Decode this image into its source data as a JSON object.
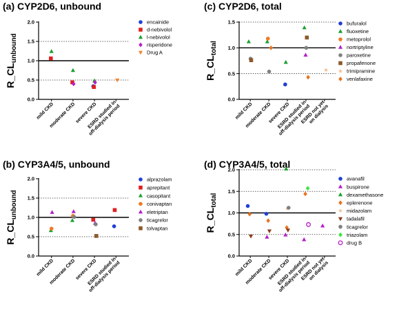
{
  "chart_data": [
    {
      "type": "scatter",
      "title": "(a) CYP2D6, unbound",
      "ylabel": {
        "main": "R_CL",
        "sub": "unbound"
      },
      "ylim": [
        0,
        2
      ],
      "yticks": [
        "0.0",
        "0.5",
        "1.0",
        "1.5",
        "2.0"
      ],
      "reference_lines": {
        "solid": [
          1.0
        ],
        "dotted": [
          0.5,
          1.5
        ]
      },
      "categories": [
        "mild CKD",
        "moderate CKD",
        "severe CKD",
        "ESRD studied in off-dialysis period"
      ],
      "series": [
        {
          "name": "encainide",
          "color": "#1f3fd6",
          "marker": "circle",
          "values": [
            null,
            null,
            0.34,
            null
          ]
        },
        {
          "name": "d-nebivolol",
          "color": "#e02020",
          "marker": "square",
          "values": [
            1.06,
            0.44,
            0.32,
            null
          ]
        },
        {
          "name": "l-nebivolol",
          "color": "#1aa02f",
          "marker": "triangle-up",
          "values": [
            1.24,
            0.75,
            0.48,
            null
          ]
        },
        {
          "name": "risperidone",
          "color": "#b51fc7",
          "marker": "diamond",
          "values": [
            null,
            0.4,
            0.44,
            null
          ]
        },
        {
          "name": "Drug A",
          "color": "#f0893a",
          "marker": "triangle-down",
          "values": [
            null,
            null,
            null,
            0.5
          ]
        }
      ]
    },
    {
      "type": "scatter",
      "title": "(c) CYP2D6, total",
      "ylabel": {
        "main": "R_CL",
        "sub": "total"
      },
      "ylim": [
        0,
        1.5
      ],
      "yticks": [
        "0.0",
        "0.5",
        "1.0",
        "1.5"
      ],
      "reference_lines": {
        "solid": [
          1.0
        ],
        "dotted": [
          0.5,
          1.5
        ]
      },
      "categories": [
        "mild CKD",
        "moderate CKD",
        "severe CKD",
        "ESRD studied in off-dialysis period",
        "ESRD not yet on dialysis"
      ],
      "series": [
        {
          "name": "bufuralol",
          "color": "#1f3fd6",
          "marker": "circle",
          "values": [
            null,
            null,
            0.29,
            null,
            null
          ]
        },
        {
          "name": "fluoxetine",
          "color": "#1aa02f",
          "marker": "triangle-up",
          "values": [
            1.12,
            1.12,
            0.72,
            1.39,
            null
          ]
        },
        {
          "name": "metoprolol",
          "color": "#f07a24",
          "marker": "circle",
          "values": [
            null,
            1.18,
            null,
            null,
            null
          ]
        },
        {
          "name": "nortriptyline",
          "color": "#b51fc7",
          "marker": "triangle-up",
          "values": [
            null,
            null,
            null,
            0.86,
            null
          ]
        },
        {
          "name": "paroxetine",
          "color": "#808080",
          "marker": "circle",
          "values": [
            0.79,
            0.54,
            null,
            1.0,
            null
          ]
        },
        {
          "name": "propafenone",
          "color": "#8b5a2b",
          "marker": "square",
          "values": [
            0.76,
            null,
            null,
            1.2,
            null
          ]
        },
        {
          "name": "trimipramine",
          "color": "#f4b98a",
          "marker": "star",
          "values": [
            null,
            null,
            null,
            null,
            0.57
          ]
        },
        {
          "name": "venlafaxine",
          "color": "#e8731e",
          "marker": "diamond",
          "values": [
            null,
            1.0,
            null,
            0.43,
            null
          ]
        }
      ]
    },
    {
      "type": "scatter",
      "title": "(b) CYP3A4/5, unbound",
      "ylabel": {
        "main": "R_CL",
        "sub": "unbound"
      },
      "ylim": [
        0,
        2
      ],
      "yticks": [
        "0.0",
        "0.5",
        "1.0",
        "1.5",
        "2.0"
      ],
      "reference_lines": {
        "solid": [
          1.0
        ],
        "dotted": [
          0.5,
          1.5
        ]
      },
      "categories": [
        "mild CKD",
        "moderate CKD",
        "severe CKD",
        "ESRD studied in off-dialysis period"
      ],
      "series": [
        {
          "name": "alprazolam",
          "color": "#1f3fd6",
          "marker": "circle",
          "values": [
            null,
            null,
            null,
            0.77
          ]
        },
        {
          "name": "aprepitant",
          "color": "#e02020",
          "marker": "square",
          "values": [
            null,
            null,
            0.94,
            1.19
          ]
        },
        {
          "name": "casopitant",
          "color": "#1aa02f",
          "marker": "triangle-up",
          "values": [
            0.66,
            0.92,
            null,
            null
          ]
        },
        {
          "name": "conivaptan",
          "color": "#f07a24",
          "marker": "circle",
          "values": [
            0.71,
            1.04,
            null,
            null
          ]
        },
        {
          "name": "eletriptan",
          "color": "#b51fc7",
          "marker": "triangle-up",
          "values": [
            1.13,
            1.15,
            0.85,
            null
          ]
        },
        {
          "name": "ticagrelor",
          "color": "#808080",
          "marker": "circle",
          "values": [
            null,
            1.01,
            0.82,
            null
          ]
        },
        {
          "name": "tolvaptan",
          "color": "#8b5a2b",
          "marker": "square",
          "values": [
            null,
            null,
            0.52,
            null
          ]
        }
      ]
    },
    {
      "type": "scatter",
      "title": "(d) CYP3A4/5, total",
      "ylabel": {
        "main": "R_CL",
        "sub": "total"
      },
      "ylim": [
        0,
        2
      ],
      "yticks": [
        "0.0",
        "0.5",
        "1.0",
        "1.5",
        "2.0"
      ],
      "reference_lines": {
        "solid": [
          1.0
        ],
        "dotted": [
          0.5,
          1.5,
          2.0
        ]
      },
      "categories": [
        "mild CKD",
        "moderate CKD",
        "severe CKD",
        "ESRD studied in off-dialysis period",
        "ESRD not yet on dialysis"
      ],
      "series": [
        {
          "name": "avanafil",
          "color": "#1f3fd6",
          "marker": "circle",
          "values": [
            1.16,
            0.98,
            null,
            null,
            null
          ]
        },
        {
          "name": "buspirone",
          "color": "#b51fc7",
          "marker": "triangle-up",
          "values": [
            null,
            0.44,
            0.49,
            0.38,
            0.7
          ]
        },
        {
          "name": "dexamethasone",
          "color": "#1aa02f",
          "marker": "triangle-up",
          "values": [
            null,
            null,
            2.02,
            null,
            null
          ]
        },
        {
          "name": "eplerenone",
          "color": "#e8731e",
          "marker": "diamond",
          "values": [
            0.97,
            0.82,
            0.66,
            1.44,
            null
          ]
        },
        {
          "name": "midazolam",
          "color": "#f4b98a",
          "marker": "star",
          "values": [
            null,
            null,
            1.1,
            null,
            null
          ]
        },
        {
          "name": "tadalafil",
          "color": "#8b3a1a",
          "marker": "triangle-down",
          "values": [
            0.46,
            0.58,
            0.6,
            null,
            null
          ]
        },
        {
          "name": "ticagrelor",
          "color": "#808080",
          "marker": "circle",
          "values": [
            null,
            null,
            1.12,
            null,
            null
          ]
        },
        {
          "name": "triazolam",
          "color": "#39e639",
          "marker": "diamond",
          "values": [
            null,
            null,
            null,
            1.57,
            null
          ]
        },
        {
          "name": "drug B",
          "color": "#b51fc7",
          "marker": "circle-open",
          "values": [
            null,
            null,
            null,
            0.73,
            null
          ]
        }
      ]
    }
  ]
}
